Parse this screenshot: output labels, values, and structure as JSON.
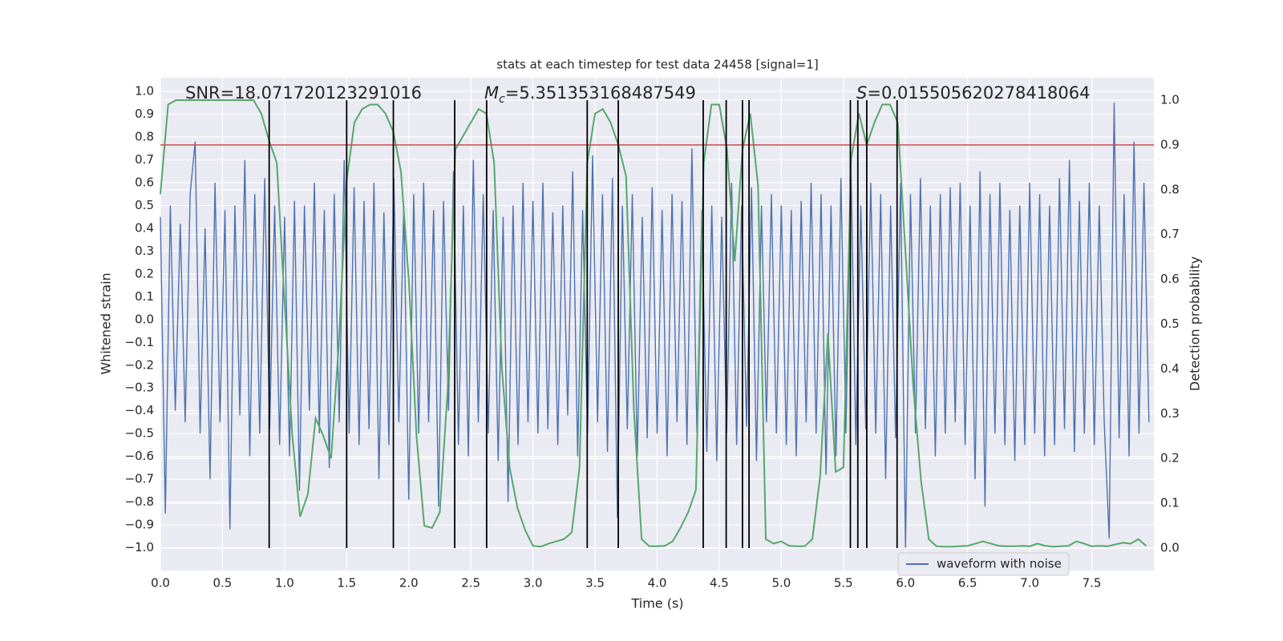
{
  "chart_data": {
    "type": "line",
    "title": "stats at each timestep for test data 24458 [signal=1]",
    "xlabel": "Time (s)",
    "ylabel": "Whitened strain",
    "y2label": "Detection probability",
    "annotations": [
      {
        "text": "SNR=18.071720123291016"
      },
      {
        "symbol": "M",
        "subscript": "c",
        "text": "=5.351353168487549"
      },
      {
        "symbol": "S",
        "text": "=0.015505620278418064"
      }
    ],
    "xlim": [
      0,
      8
    ],
    "ylim": [
      -1.1,
      1.06
    ],
    "y2lim": [
      -0.05,
      1.05
    ],
    "xticks": [
      {
        "value": 0,
        "label": "0.0"
      },
      0.5,
      {
        "value": 1,
        "label": "1.0"
      },
      1.5,
      {
        "value": 2,
        "label": "2.0"
      },
      2.5,
      {
        "value": 3,
        "label": "3.0"
      },
      3.5,
      {
        "value": 4,
        "label": "4.0"
      },
      4.5,
      {
        "value": 5,
        "label": "5.0"
      },
      5.5,
      {
        "value": 6,
        "label": "6.0"
      },
      6.5,
      {
        "value": 7,
        "label": "7.0"
      },
      7.5
    ],
    "yticks": [
      {
        "value": -1,
        "label": "−1.0"
      },
      {
        "value": -0.9,
        "label": "−0.9"
      },
      {
        "value": -0.8,
        "label": "−0.8"
      },
      {
        "value": -0.7,
        "label": "−0.7"
      },
      {
        "value": -0.6,
        "label": "−0.6"
      },
      {
        "value": -0.5,
        "label": "−0.5"
      },
      {
        "value": -0.4,
        "label": "−0.4"
      },
      {
        "value": -0.3,
        "label": "−0.3"
      },
      {
        "value": -0.2,
        "label": "−0.2"
      },
      {
        "value": -0.1,
        "label": "−0.1"
      },
      {
        "value": 0,
        "label": "0.0"
      },
      0.1,
      0.2,
      0.3,
      0.4,
      0.5,
      0.6,
      0.7,
      0.8,
      0.9,
      {
        "value": 1,
        "label": "1.0"
      }
    ],
    "y2ticks": [
      {
        "value": 0,
        "label": "0.0"
      },
      0.1,
      0.2,
      0.3,
      0.4,
      0.5,
      0.6,
      0.7,
      0.8,
      0.9,
      {
        "value": 1,
        "label": "1.0"
      }
    ],
    "grid": true,
    "legend": "lower right",
    "series": [
      {
        "name": "waveform with noise",
        "color": "#4c72b0",
        "x": [
          0,
          0.04,
          0.08,
          0.12,
          0.16,
          0.2,
          0.24,
          0.28,
          0.32,
          0.36,
          0.4,
          0.44,
          0.48,
          0.52,
          0.56,
          0.6,
          0.64,
          0.68,
          0.72,
          0.76,
          0.8,
          0.84,
          0.88,
          0.92,
          0.96,
          1,
          1.04,
          1.08,
          1.12,
          1.16,
          1.2,
          1.24,
          1.28,
          1.32,
          1.36,
          1.4,
          1.44,
          1.48,
          1.52,
          1.56,
          1.6,
          1.64,
          1.68,
          1.72,
          1.76,
          1.8,
          1.84,
          1.88,
          1.92,
          1.96,
          2,
          2.04,
          2.08,
          2.12,
          2.16,
          2.2,
          2.24,
          2.28,
          2.32,
          2.36,
          2.4,
          2.44,
          2.48,
          2.52,
          2.56,
          2.6,
          2.64,
          2.68,
          2.72,
          2.76,
          2.8,
          2.84,
          2.88,
          2.92,
          2.96,
          3,
          3.04,
          3.08,
          3.12,
          3.16,
          3.2,
          3.24,
          3.28,
          3.32,
          3.36,
          3.4,
          3.44,
          3.48,
          3.52,
          3.56,
          3.6,
          3.64,
          3.68,
          3.72,
          3.76,
          3.8,
          3.84,
          3.88,
          3.92,
          3.96,
          4,
          4.04,
          4.08,
          4.12,
          4.16,
          4.2,
          4.24,
          4.28,
          4.32,
          4.36,
          4.4,
          4.44,
          4.48,
          4.52,
          4.56,
          4.6,
          4.64,
          4.68,
          4.72,
          4.76,
          4.8,
          4.84,
          4.88,
          4.92,
          4.96,
          5,
          5.04,
          5.08,
          5.12,
          5.16,
          5.2,
          5.24,
          5.28,
          5.32,
          5.36,
          5.4,
          5.44,
          5.48,
          5.52,
          5.56,
          5.6,
          5.64,
          5.68,
          5.72,
          5.76,
          5.8,
          5.84,
          5.88,
          5.92,
          5.96,
          6,
          6.04,
          6.08,
          6.12,
          6.16,
          6.2,
          6.24,
          6.28,
          6.32,
          6.36,
          6.4,
          6.44,
          6.48,
          6.52,
          6.56,
          6.6,
          6.64,
          6.68,
          6.72,
          6.76,
          6.8,
          6.84,
          6.88,
          6.92,
          6.96,
          7,
          7.04,
          7.08,
          7.12,
          7.16,
          7.2,
          7.24,
          7.28,
          7.32,
          7.36,
          7.4,
          7.44,
          7.48,
          7.52,
          7.56,
          7.6,
          7.64,
          7.68,
          7.72,
          7.76,
          7.8,
          7.84,
          7.88,
          7.92,
          7.96
        ],
        "values": [
          0.45,
          -0.85,
          0.5,
          -0.4,
          0.42,
          -0.45,
          0.55,
          0.78,
          -0.5,
          0.4,
          -0.7,
          0.6,
          -0.45,
          0.48,
          -0.92,
          0.5,
          -0.42,
          0.7,
          -0.6,
          0.55,
          -0.5,
          0.62,
          -0.48,
          0.5,
          -0.55,
          0.45,
          -0.6,
          0.52,
          -0.75,
          0.5,
          -0.4,
          0.6,
          -0.5,
          0.48,
          -0.65,
          0.55,
          -0.45,
          0.7,
          -0.5,
          0.58,
          -0.55,
          0.52,
          -0.48,
          0.6,
          -0.7,
          0.47,
          -0.55,
          0.62,
          -0.45,
          0.5,
          -0.79,
          0.55,
          -0.5,
          0.6,
          -0.45,
          0.48,
          -0.82,
          0.52,
          -0.4,
          0.65,
          -0.55,
          0.5,
          -0.6,
          0.7,
          -0.45,
          0.55,
          -0.5,
          0.48,
          -0.62,
          0.45,
          -0.8,
          0.5,
          -0.55,
          0.6,
          -0.45,
          0.52,
          -0.5,
          0.6,
          -0.48,
          0.47,
          -0.55,
          0.5,
          -0.42,
          0.65,
          -0.6,
          0.48,
          -0.5,
          0.72,
          -0.45,
          0.55,
          -0.58,
          0.62,
          -0.87,
          0.5,
          -0.48,
          0.55,
          -0.6,
          0.45,
          -0.52,
          0.58,
          -0.5,
          0.48,
          -0.6,
          0.55,
          -0.45,
          0.52,
          -0.55,
          0.75,
          -0.5,
          0.48,
          -0.58,
          0.5,
          -0.62,
          0.45,
          -0.5,
          0.6,
          -0.55,
          0.5,
          -0.47,
          0.58,
          -0.62,
          0.5,
          -0.45,
          0.55,
          -0.5,
          0.5,
          -0.55,
          0.48,
          -0.6,
          0.52,
          -0.45,
          0.6,
          -0.5,
          0.55,
          -0.68,
          0.5,
          -0.6,
          0.62,
          -0.5,
          0.7,
          -0.55,
          0.5,
          -0.48,
          0.6,
          -0.5,
          0.55,
          -0.7,
          0.5,
          -0.52,
          0.6,
          -1.0,
          0.55,
          -0.5,
          0.62,
          -0.48,
          0.5,
          -0.6,
          0.55,
          -0.5,
          0.58,
          -0.45,
          0.6,
          -0.55,
          0.5,
          -0.7,
          0.65,
          -0.82,
          0.55,
          -0.5,
          0.6,
          -0.55,
          0.48,
          -0.62,
          0.5,
          -0.55,
          0.6,
          -0.5,
          0.55,
          -0.6,
          0.5,
          -0.55,
          0.62,
          -0.48,
          0.7,
          -0.58,
          0.52,
          -0.5,
          0.6,
          -0.55,
          0.5,
          -0.45,
          -0.96,
          0.95,
          -0.52,
          0.55,
          -0.6,
          0.78,
          -0.5,
          0.6,
          -0.45
        ]
      },
      {
        "color": "#55a868",
        "axis": "y2",
        "x": [
          0,
          0.0625,
          0.125,
          0.1875,
          0.25,
          0.3125,
          0.375,
          0.4375,
          0.5,
          0.5625,
          0.625,
          0.6875,
          0.75,
          0.8125,
          0.875,
          0.9375,
          1,
          1.0625,
          1.125,
          1.1875,
          1.25,
          1.3125,
          1.375,
          1.4375,
          1.5,
          1.5625,
          1.625,
          1.6875,
          1.75,
          1.8125,
          1.875,
          1.9375,
          2,
          2.0625,
          2.125,
          2.1875,
          2.25,
          2.3125,
          2.375,
          2.4375,
          2.5,
          2.5625,
          2.625,
          2.6875,
          2.75,
          2.8125,
          2.875,
          2.9375,
          3,
          3.0625,
          3.125,
          3.1875,
          3.25,
          3.3125,
          3.375,
          3.4375,
          3.5,
          3.5625,
          3.625,
          3.6875,
          3.75,
          3.8125,
          3.875,
          3.9375,
          4,
          4.0625,
          4.125,
          4.1875,
          4.25,
          4.3125,
          4.375,
          4.4375,
          4.5,
          4.5625,
          4.625,
          4.6875,
          4.75,
          4.8125,
          4.875,
          4.9375,
          5,
          5.0625,
          5.125,
          5.1875,
          5.25,
          5.3125,
          5.375,
          5.4375,
          5.5,
          5.5625,
          5.625,
          5.6875,
          5.75,
          5.8125,
          5.875,
          5.9375,
          6,
          6.0625,
          6.125,
          6.1875,
          6.25,
          6.3125,
          6.375,
          6.4375,
          6.5,
          6.5625,
          6.625,
          6.6875,
          6.75,
          6.8125,
          6.875,
          6.9375,
          7,
          7.0625,
          7.125,
          7.1875,
          7.25,
          7.3125,
          7.375,
          7.4375,
          7.5,
          7.5625,
          7.625,
          7.6875,
          7.75,
          7.8125,
          7.875,
          7.9375
        ],
        "values": [
          0.79,
          0.99,
          1.0,
          1.0,
          1.0,
          1.0,
          1.0,
          1.0,
          1.0,
          1.0,
          1.0,
          1.0,
          1.0,
          0.97,
          0.91,
          0.86,
          0.55,
          0.25,
          0.07,
          0.12,
          0.29,
          0.25,
          0.2,
          0.46,
          0.82,
          0.95,
          0.98,
          0.99,
          0.99,
          0.97,
          0.93,
          0.84,
          0.6,
          0.25,
          0.05,
          0.045,
          0.08,
          0.35,
          0.89,
          0.92,
          0.95,
          0.98,
          0.97,
          0.86,
          0.4,
          0.18,
          0.09,
          0.04,
          0.005,
          0.003,
          0.01,
          0.015,
          0.02,
          0.035,
          0.18,
          0.86,
          0.97,
          0.98,
          0.95,
          0.9,
          0.83,
          0.31,
          0.02,
          0.004,
          0.004,
          0.005,
          0.015,
          0.045,
          0.08,
          0.13,
          0.86,
          0.99,
          0.99,
          0.89,
          0.64,
          0.89,
          0.97,
          0.81,
          0.02,
          0.01,
          0.015,
          0.005,
          0.004,
          0.004,
          0.02,
          0.16,
          0.48,
          0.17,
          0.18,
          0.87,
          0.97,
          0.9,
          0.95,
          0.99,
          0.99,
          0.95,
          0.66,
          0.36,
          0.15,
          0.02,
          0.004,
          0.003,
          0.003,
          0.004,
          0.005,
          0.01,
          0.015,
          0.01,
          0.005,
          0.004,
          0.004,
          0.005,
          0.004,
          0.01,
          0.005,
          0.003,
          0.004,
          0.005,
          0.015,
          0.01,
          0.004,
          0.005,
          0.004,
          0.008,
          0.012,
          0.01,
          0.02,
          0.005
        ]
      }
    ],
    "vlines": {
      "x": [
        0.876,
        1.5,
        1.876,
        2.37,
        2.627,
        3.437,
        3.687,
        4.371,
        4.556,
        4.687,
        4.74,
        5.556,
        5.616,
        5.688,
        5.932
      ],
      "range": [
        0,
        1
      ],
      "axis": "y2",
      "color": "#000000"
    },
    "hline": {
      "value": 0.9,
      "axis": "y2",
      "color": "#c44e52"
    }
  }
}
